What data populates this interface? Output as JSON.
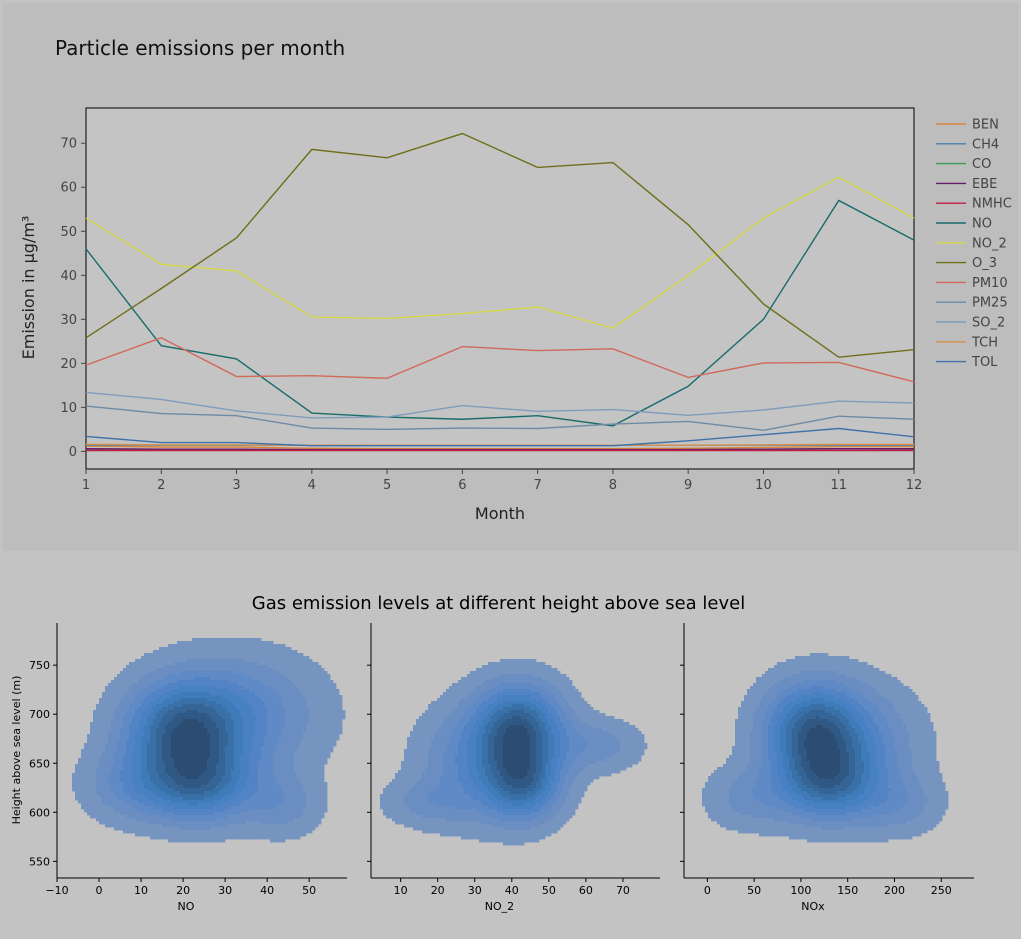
{
  "chart_data": [
    {
      "type": "line",
      "title": "Particle emissions per month",
      "xlabel": "Month",
      "ylabel": "Emission in μg/m³",
      "x": [
        1,
        2,
        3,
        4,
        5,
        6,
        7,
        8,
        9,
        10,
        11,
        12
      ],
      "xlim": [
        1,
        12
      ],
      "ylim": [
        -4,
        78
      ],
      "xticks": [
        "1",
        "2",
        "3",
        "4",
        "5",
        "6",
        "7",
        "8",
        "9",
        "10",
        "11",
        "12"
      ],
      "yticks": [
        "0",
        "10",
        "20",
        "30",
        "40",
        "50",
        "60",
        "70"
      ],
      "legend_position": "right",
      "grid": false,
      "series": [
        {
          "name": "BEN",
          "color": "#d9863c",
          "values": [
            1.2,
            1.0,
            1.0,
            0.7,
            0.6,
            0.6,
            0.6,
            0.6,
            0.7,
            0.9,
            1.1,
            1.1
          ]
        },
        {
          "name": "CH4",
          "color": "#4a7fb0",
          "values": [
            1.4,
            1.4,
            1.4,
            1.4,
            1.4,
            1.4,
            1.4,
            1.4,
            1.4,
            1.4,
            1.4,
            1.4
          ]
        },
        {
          "name": "CO",
          "color": "#3a9a5a",
          "values": [
            0.5,
            0.5,
            0.4,
            0.3,
            0.3,
            0.3,
            0.3,
            0.3,
            0.4,
            0.5,
            0.6,
            0.5
          ]
        },
        {
          "name": "EBE",
          "color": "#6a1a6a",
          "values": [
            0.6,
            0.5,
            0.5,
            0.4,
            0.4,
            0.4,
            0.4,
            0.4,
            0.4,
            0.5,
            0.6,
            0.6
          ]
        },
        {
          "name": "NMHC",
          "color": "#c02040",
          "values": [
            0.2,
            0.2,
            0.2,
            0.2,
            0.2,
            0.2,
            0.2,
            0.2,
            0.2,
            0.2,
            0.2,
            0.2
          ]
        },
        {
          "name": "NO",
          "color": "#1a6b6b",
          "values": [
            46,
            24,
            21,
            8.7,
            7.8,
            7.3,
            8.1,
            5.8,
            14.8,
            30,
            57,
            48
          ]
        },
        {
          "name": "NO_2",
          "color": "#d8d84a",
          "values": [
            53,
            42.5,
            41,
            30.5,
            30.2,
            31.3,
            32.8,
            28,
            40,
            53,
            62.3,
            53
          ]
        },
        {
          "name": "O_3",
          "color": "#6e6e1a",
          "values": [
            25.8,
            37,
            48.5,
            68.6,
            66.7,
            72.2,
            64.5,
            65.6,
            51.5,
            33.5,
            21.4,
            23.1
          ]
        },
        {
          "name": "PM10",
          "color": "#d06a5a",
          "values": [
            19.6,
            25.8,
            17,
            17.2,
            16.6,
            23.8,
            22.9,
            23.3,
            16.8,
            20.1,
            20.2,
            15.8
          ]
        },
        {
          "name": "PM25",
          "color": "#6f8aa4",
          "values": [
            10.3,
            8.6,
            8.1,
            5.3,
            5.0,
            5.3,
            5.2,
            6.2,
            6.8,
            4.8,
            8.0,
            7.3
          ]
        },
        {
          "name": "SO_2",
          "color": "#7f9cbc",
          "values": [
            13.4,
            11.8,
            9.2,
            7.6,
            7.8,
            10.4,
            9.1,
            9.5,
            8.2,
            9.4,
            11.4,
            11.0
          ]
        },
        {
          "name": "TCH",
          "color": "#d8904c",
          "values": [
            1.6,
            1.5,
            1.5,
            1.4,
            1.4,
            1.4,
            1.4,
            1.4,
            1.4,
            1.5,
            1.6,
            1.6
          ]
        },
        {
          "name": "TOL",
          "color": "#3f72a8",
          "values": [
            3.4,
            2.0,
            2.0,
            1.3,
            1.3,
            1.3,
            1.3,
            1.3,
            2.4,
            3.8,
            5.2,
            3.3
          ]
        }
      ]
    },
    {
      "type": "kde_density",
      "title": "Gas emission levels at different height above sea level",
      "ylabel": "Height above sea level (m)",
      "ylim": [
        533,
        793
      ],
      "yticks": [
        "550",
        "600",
        "650",
        "700",
        "750"
      ],
      "panels": [
        {
          "xlabel": "NO",
          "xlim": [
            -10,
            59
          ],
          "xticks": [
            "−10",
            "0",
            "10",
            "20",
            "30",
            "40",
            "50"
          ],
          "modes": [
            {
              "x": 20,
              "y": 682,
              "sx": 9,
              "sy": 33,
              "w": 1.0
            },
            {
              "x": 24,
              "y": 628,
              "sx": 9,
              "sy": 26,
              "w": 0.8
            },
            {
              "x": 33,
              "y": 700,
              "sx": 13,
              "sy": 40,
              "w": 0.45
            },
            {
              "x": 8,
              "y": 628,
              "sx": 8,
              "sy": 25,
              "w": 0.3
            },
            {
              "x": 44,
              "y": 608,
              "sx": 6,
              "sy": 22,
              "w": 0.25
            }
          ]
        },
        {
          "xlabel": "NO_2",
          "xlim": [
            2,
            80
          ],
          "xticks": [
            "10",
            "20",
            "30",
            "40",
            "50",
            "60",
            "70"
          ],
          "modes": [
            {
              "x": 42,
              "y": 686,
              "sx": 8,
              "sy": 30,
              "w": 1.0
            },
            {
              "x": 43,
              "y": 630,
              "sx": 7,
              "sy": 26,
              "w": 0.8
            },
            {
              "x": 30,
              "y": 650,
              "sx": 10,
              "sy": 38,
              "w": 0.4
            },
            {
              "x": 63,
              "y": 668,
              "sx": 8,
              "sy": 18,
              "w": 0.25
            },
            {
              "x": 17,
              "y": 610,
              "sx": 8,
              "sy": 16,
              "w": 0.2
            }
          ]
        },
        {
          "xlabel": "NOx",
          "xlim": [
            -25,
            285
          ],
          "xticks": [
            "0",
            "50",
            "100",
            "150",
            "200",
            "250"
          ],
          "modes": [
            {
              "x": 112,
              "y": 684,
              "sx": 35,
              "sy": 32,
              "w": 1.0
            },
            {
              "x": 128,
              "y": 630,
              "sx": 35,
              "sy": 26,
              "w": 0.8
            },
            {
              "x": 160,
              "y": 668,
              "sx": 45,
              "sy": 40,
              "w": 0.4
            },
            {
              "x": 45,
              "y": 615,
              "sx": 32,
              "sy": 22,
              "w": 0.25
            },
            {
              "x": 205,
              "y": 608,
              "sx": 30,
              "sy": 20,
              "w": 0.25
            }
          ]
        }
      ]
    }
  ]
}
